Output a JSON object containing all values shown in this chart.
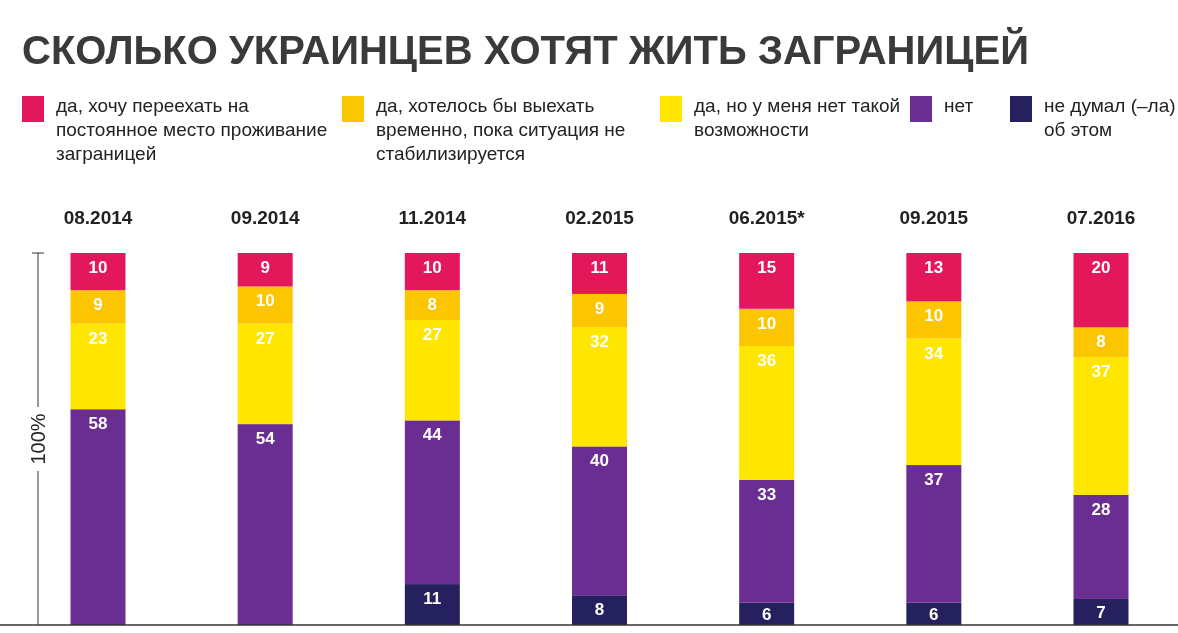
{
  "chart_data": {
    "type": "bar",
    "stacked": true,
    "title": "СКОЛЬКО УКРАИНЦЕВ ХОТЯТ ЖИТЬ ЗАГРАНИЦЕЙ",
    "ylabel": "100%",
    "categories": [
      "08.2014",
      "09.2014",
      "11.2014",
      "02.2015",
      "06.2015*",
      "09.2015",
      "07.2016"
    ],
    "series": [
      {
        "name": "не думал (–ла) об этом",
        "color": "#25215e",
        "values": [
          null,
          null,
          11,
          8,
          6,
          6,
          7
        ]
      },
      {
        "name": "нет",
        "color": "#6a2d91",
        "values": [
          58,
          54,
          44,
          40,
          33,
          37,
          28
        ]
      },
      {
        "name": "да, но у меня нет такой возможности",
        "color": "#ffe600",
        "values": [
          23,
          27,
          27,
          32,
          36,
          34,
          37
        ]
      },
      {
        "name": "да, хотелось бы выехать временно, пока ситуация не стабилизируется",
        "color": "#fbc600",
        "values": [
          9,
          10,
          8,
          9,
          10,
          10,
          8
        ]
      },
      {
        "name": "да, хочу переехать на постоянное место проживание заграницей",
        "color": "#e2185b",
        "values": [
          10,
          9,
          10,
          11,
          15,
          13,
          20
        ]
      }
    ],
    "ylim": [
      0,
      100
    ],
    "tick_labels": "x",
    "data_labels": true,
    "legend": "top",
    "grid": false
  }
}
